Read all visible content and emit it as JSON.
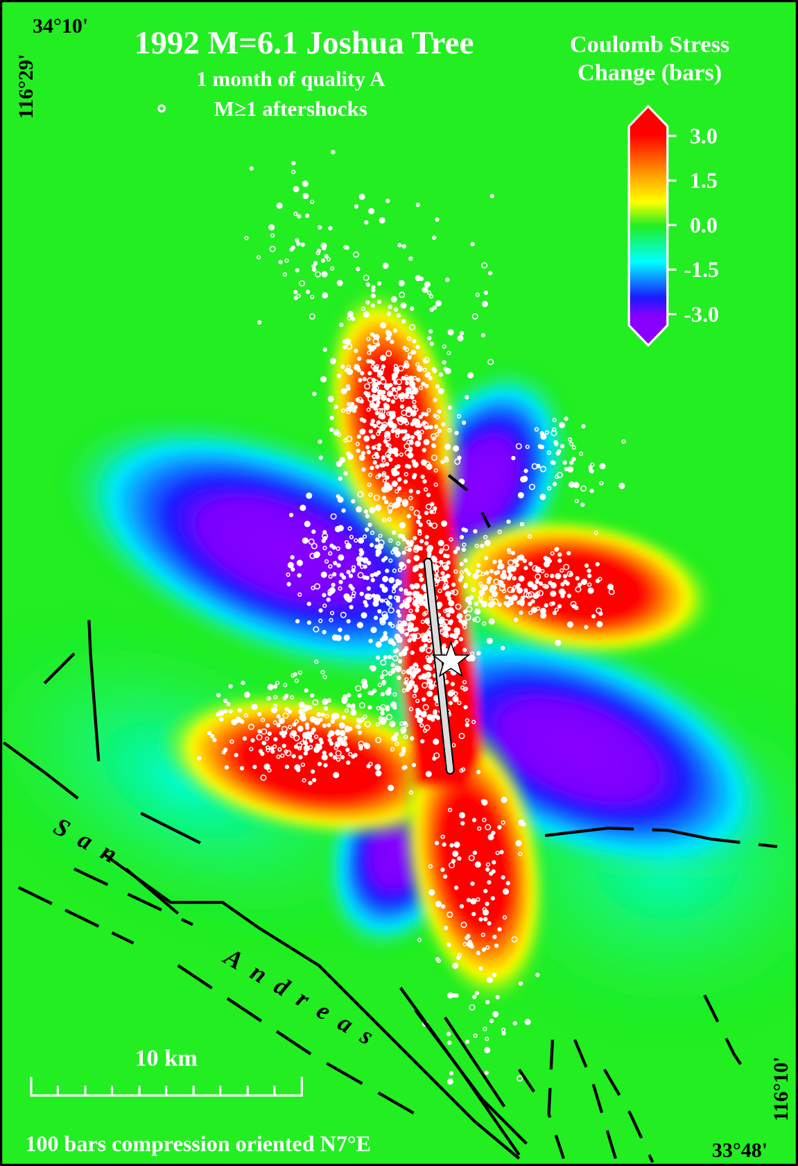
{
  "map": {
    "corner_top_left": "34°10'",
    "corner_left": "116°29'",
    "title": "1992  M=6.1 Joshua Tree",
    "subtitle": [
      "1 month of quality A",
      "M≥1 aftershocks"
    ],
    "colorbar": {
      "title": [
        "Coulomb Stress",
        "Change (bars)"
      ],
      "ticks": [
        "3.0",
        "1.5",
        "0.0",
        "-1.5",
        "-3.0"
      ]
    },
    "fault_label": [
      "San",
      "Andreas"
    ],
    "scale_label": "10 km",
    "footer": "100 bars compression oriented N7°E",
    "corner_right": "116°10'",
    "corner_bottom_right": "33°48'"
  }
}
